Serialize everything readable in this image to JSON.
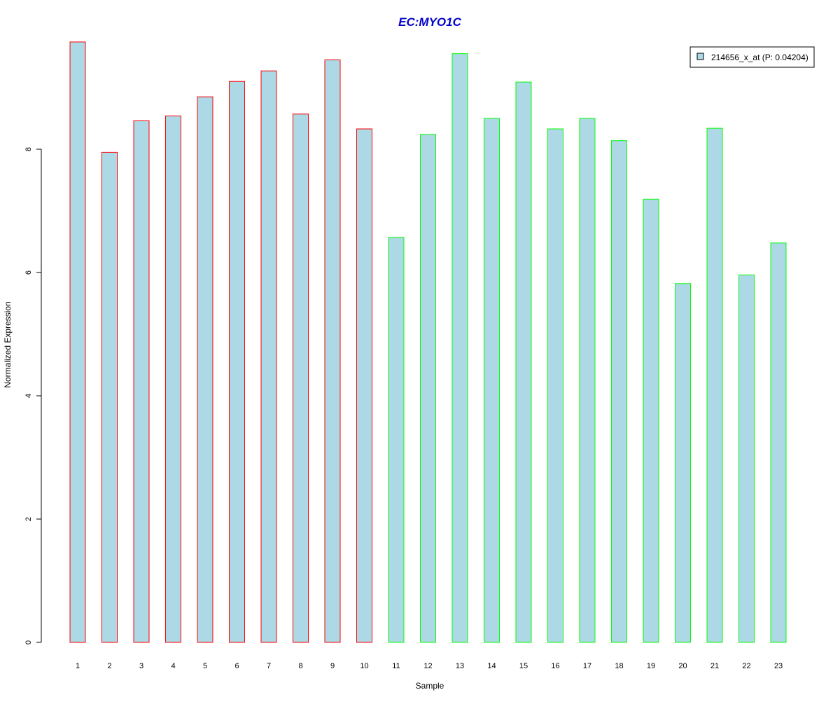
{
  "chart_data": {
    "type": "bar",
    "title": "EC:MYO1C",
    "xlabel": "Sample",
    "ylabel": "Normalized Expression",
    "categories": [
      "1",
      "2",
      "3",
      "4",
      "5",
      "6",
      "7",
      "8",
      "9",
      "10",
      "11",
      "12",
      "13",
      "14",
      "15",
      "16",
      "17",
      "18",
      "19",
      "20",
      "21",
      "22",
      "23"
    ],
    "series": [
      {
        "name": "214656_x_at (P: 0.04204)",
        "values": [
          9.74,
          7.95,
          8.46,
          8.54,
          8.85,
          9.1,
          9.27,
          8.57,
          9.45,
          8.33,
          6.57,
          8.24,
          9.55,
          8.5,
          9.09,
          8.33,
          8.5,
          8.14,
          7.19,
          5.82,
          8.34,
          5.96,
          6.48
        ],
        "fill": "#ADD8E6",
        "group_border_colors": [
          "#FF0000",
          "#FF0000",
          "#FF0000",
          "#FF0000",
          "#FF0000",
          "#FF0000",
          "#FF0000",
          "#FF0000",
          "#FF0000",
          "#FF0000",
          "#00FF00",
          "#00FF00",
          "#00FF00",
          "#00FF00",
          "#00FF00",
          "#00FF00",
          "#00FF00",
          "#00FF00",
          "#00FF00",
          "#00FF00",
          "#00FF00",
          "#00FF00",
          "#00FF00"
        ]
      }
    ],
    "y_ticks": [
      "0",
      "2",
      "4",
      "6",
      "8"
    ],
    "ylim": [
      0,
      9.74
    ],
    "legend_position": "top-right",
    "grid": false,
    "title_color": "#0000CD"
  }
}
